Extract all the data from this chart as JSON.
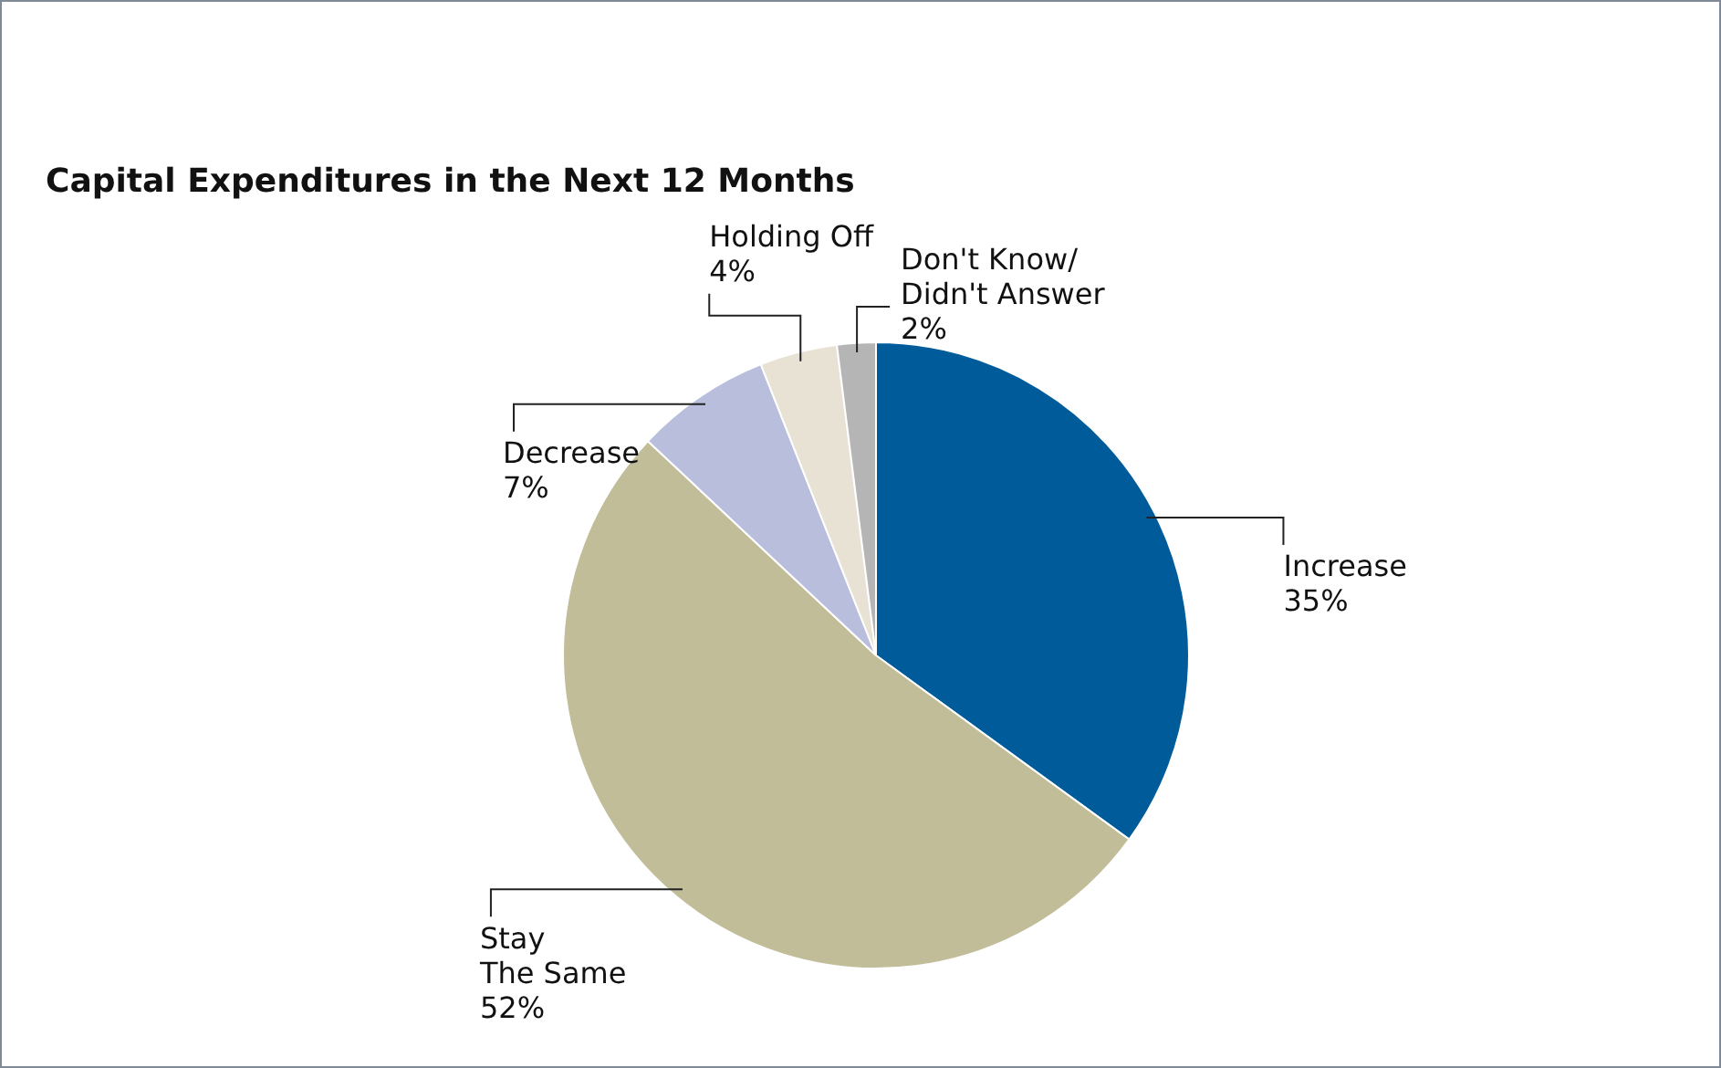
{
  "chart_data": {
    "type": "pie",
    "title": "Capital Expenditures in the Next 12 Months",
    "categories": [
      "Increase",
      "Stay\nThe Same",
      "Decrease",
      "Holding Off",
      "Don't Know/\nDidn't Answer"
    ],
    "values": [
      35,
      52,
      7,
      4,
      2
    ],
    "value_labels": [
      "35%",
      "52%",
      "7%",
      "4%",
      "2%"
    ],
    "colors": [
      "#005b9a",
      "#c0bd98",
      "#b8bedc",
      "#e8e2d5",
      "#b5b5b5"
    ],
    "legend": false
  }
}
